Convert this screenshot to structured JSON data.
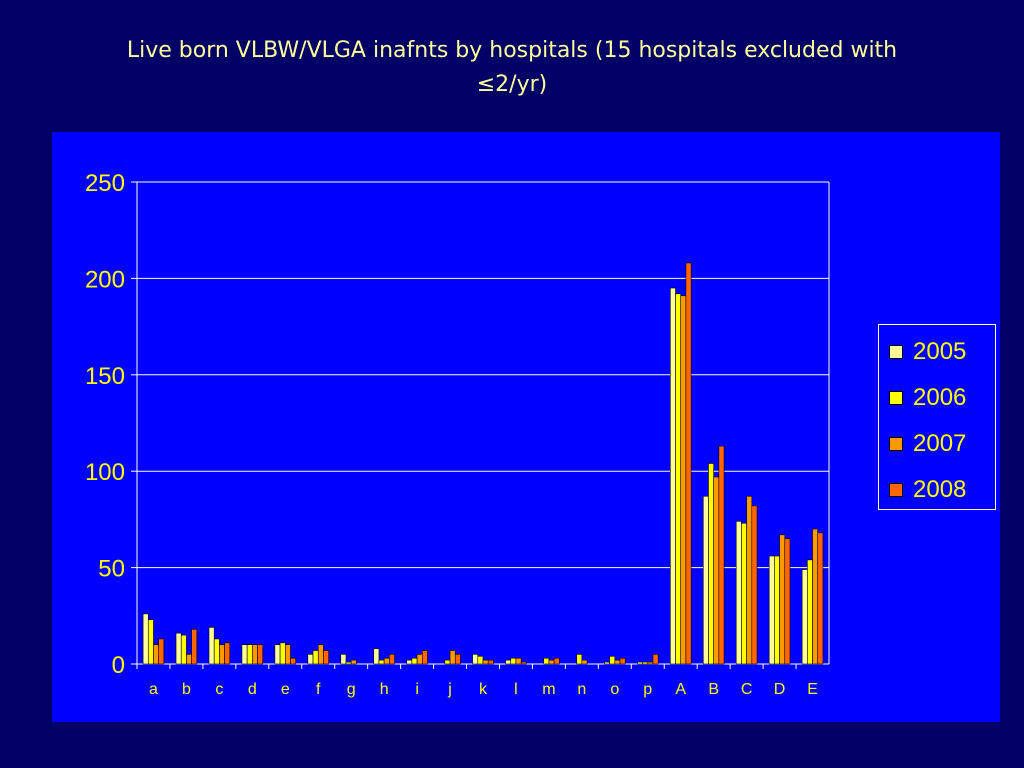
{
  "slide": {
    "title_line1": "Live born VLBW/VLGA inafnts by hospitals (15 hospitals excluded with",
    "title_line2": "≤2/yr)"
  },
  "chart_data": {
    "type": "bar",
    "title": "",
    "xlabel": "",
    "ylabel": "",
    "ylim": [
      0,
      250
    ],
    "yticks": [
      0,
      50,
      100,
      150,
      200,
      250
    ],
    "grid": true,
    "legend_position": "right",
    "categories": [
      "a",
      "b",
      "c",
      "d",
      "e",
      "f",
      "g",
      "h",
      "i",
      "j",
      "k",
      "l",
      "m",
      "n",
      "o",
      "p",
      "A",
      "B",
      "C",
      "D",
      "E"
    ],
    "series": [
      {
        "name": "2005",
        "color": "#ffff99",
        "values": [
          26,
          16,
          19,
          10,
          10,
          5,
          5,
          8,
          2,
          0,
          5,
          2,
          0,
          0,
          1,
          1,
          195,
          87,
          74,
          56,
          49
        ]
      },
      {
        "name": "2006",
        "color": "#ffff00",
        "values": [
          23,
          15,
          13,
          10,
          11,
          7,
          1,
          2,
          3,
          2,
          4,
          3,
          3,
          5,
          4,
          1,
          192,
          104,
          73,
          56,
          54
        ]
      },
      {
        "name": "2007",
        "color": "#ff9900",
        "values": [
          10,
          5,
          10,
          10,
          10,
          10,
          2,
          3,
          5,
          7,
          2,
          3,
          2,
          2,
          2,
          1,
          191,
          97,
          87,
          67,
          70
        ]
      },
      {
        "name": "2008",
        "color": "#ff6600",
        "values": [
          13,
          18,
          11,
          10,
          3,
          7,
          0,
          5,
          7,
          5,
          2,
          1,
          3,
          0,
          3,
          5,
          208,
          113,
          82,
          65,
          68
        ]
      }
    ]
  }
}
